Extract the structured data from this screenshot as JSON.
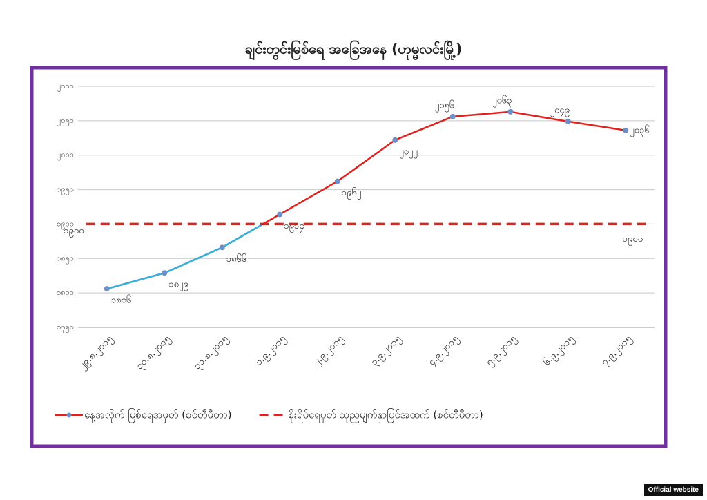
{
  "chart_data": {
    "type": "line",
    "title": "ချင်းတွင်းမြစ်ရေ အခြေအနေ (ဟုမ္မလင်းမြို့)",
    "categories": [
      "၂၉.၈.၂၀၁၅",
      "၃၀.၈.၂၀၁၅",
      "၃၁.၈.၂၀၁၅",
      "၁.၉.၂၀၁၅",
      "၂.၉.၂၀၁၅",
      "၃.၉.၂၀၁၅",
      "၄.၉.၂၀၁၅",
      "၅.၉.၂၀၁၅",
      "၆.၉.၂၀၁၅",
      "၇.၉.၂၀၁၅"
    ],
    "series": [
      {
        "name": "နေ့အလိုက် မြစ်ရေအမှတ် (စင်တီမီတာ)",
        "color": "#e0211d",
        "below_color": "#2eb4e2",
        "marker_color": "#6f8fc8",
        "values": [
          1806,
          1829,
          1866,
          1914,
          1962,
          2022,
          2056,
          2063,
          2049,
          2036
        ],
        "value_labels": [
          "၁၈၀၆",
          "၁၈၂၉",
          "၁၈၆၆",
          "၁၉၁၄",
          "၁၉၆၂",
          "၂၀၂၂",
          "၂၀၅၆",
          "၂၀၆၃",
          "၂၀၄၉",
          "၂၀၃၆"
        ]
      },
      {
        "name": "စိုးရိမ်ရေမှတ် သုညမျက်နှာပြင်အထက် (စင်တီမီတာ)",
        "color": "#e0211d",
        "dashed": true,
        "values": [
          1900,
          1900,
          1900,
          1900,
          1900,
          1900,
          1900,
          1900,
          1900,
          1900
        ],
        "value_labels": [
          "၁၉၀၀",
          null,
          null,
          null,
          null,
          null,
          null,
          null,
          null,
          "၁၉၀၀"
        ]
      }
    ],
    "ylim": [
      1750,
      2100
    ],
    "yticks": [
      {
        "value": 1750,
        "label": "၁၇၅၀"
      },
      {
        "value": 1800,
        "label": "၁၈၀၀"
      },
      {
        "value": 1850,
        "label": "၁၈၅၀"
      },
      {
        "value": 1900,
        "label": "၁၉၀၀"
      },
      {
        "value": 1950,
        "label": "၁၉၅၀"
      },
      {
        "value": 2000,
        "label": "၂၀၀၀"
      },
      {
        "value": 2050,
        "label": "၂၀၅၀"
      },
      {
        "value": 2100,
        "label": "၂၁၀၀"
      }
    ],
    "grid": true,
    "legend": "bottom"
  },
  "footer": {
    "badge": "Official website"
  }
}
